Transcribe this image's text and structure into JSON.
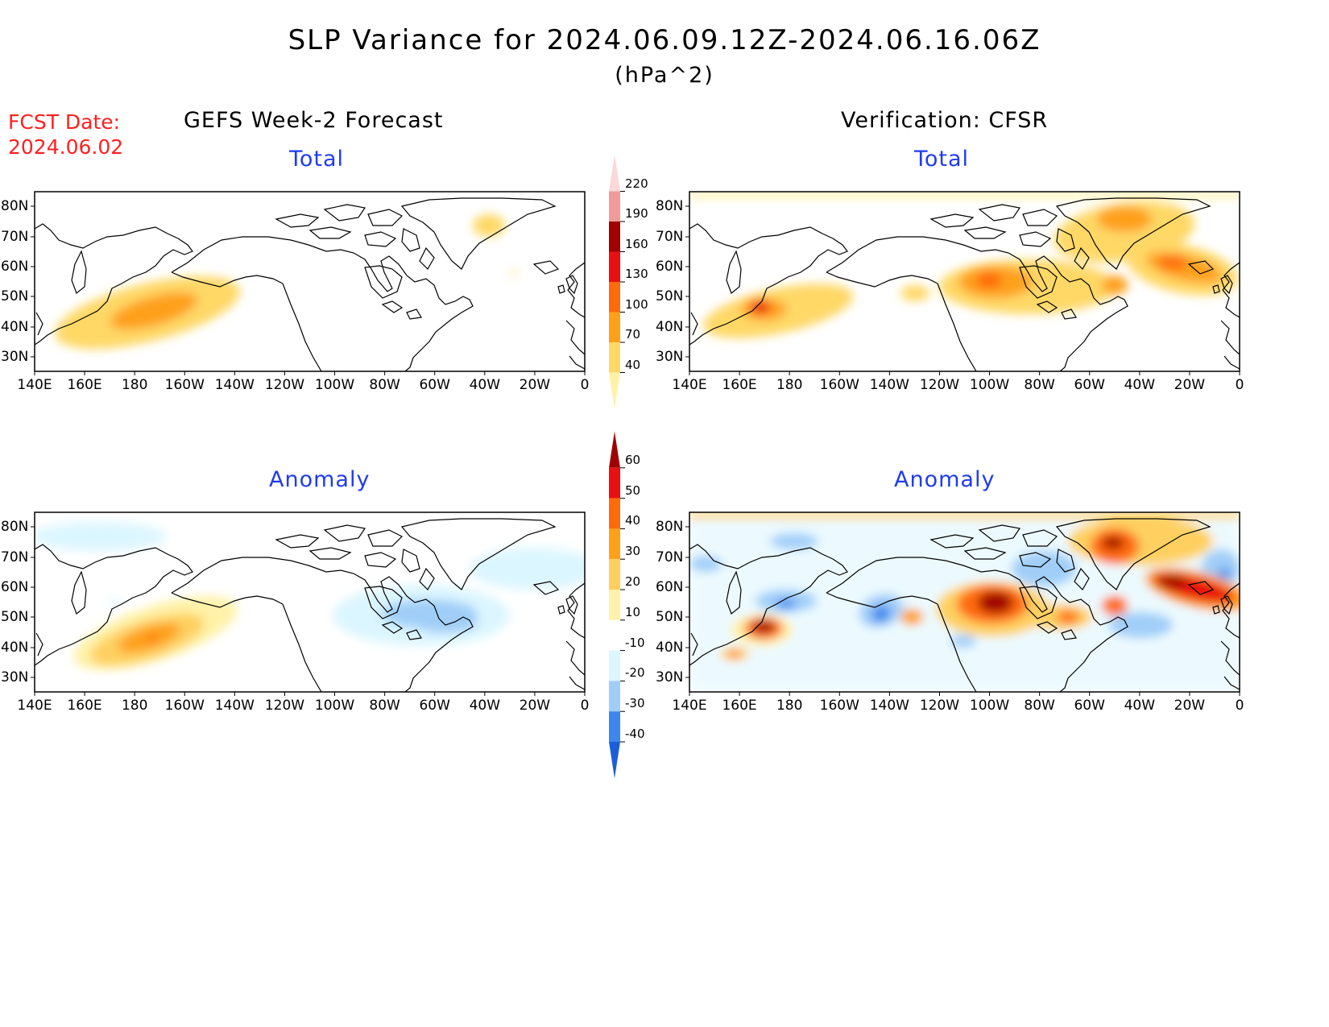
{
  "header": {
    "title": "SLP Variance for 2024.06.09.12Z-2024.06.16.06Z",
    "units": "(hPa^2)",
    "fcst_label": "FCST Date:",
    "fcst_date": "2024.06.02"
  },
  "columns": {
    "left": "GEFS Week-2 Forecast",
    "right": "Verification: CFSR"
  },
  "panel_titles": {
    "total": "Total",
    "anomaly": "Anomaly"
  },
  "axes": {
    "lat_labels": [
      "80N",
      "70N",
      "60N",
      "50N",
      "40N",
      "30N"
    ],
    "lon_labels": [
      "140E",
      "160E",
      "180",
      "160W",
      "140W",
      "120W",
      "100W",
      "80W",
      "60W",
      "40W",
      "20W",
      "0"
    ]
  },
  "legends": {
    "total": {
      "levels": [
        "40",
        "70",
        "100",
        "130",
        "160",
        "190",
        "220"
      ],
      "colors": [
        "#fff2a8",
        "#ffd866",
        "#ffa01a",
        "#ff6a0a",
        "#e81010",
        "#a00000",
        "#f09a9a",
        "#fcd8d8"
      ]
    },
    "anomaly": {
      "levels": [
        "-40",
        "-30",
        "-20",
        "-10",
        "10",
        "20",
        "30",
        "40",
        "50",
        "60"
      ],
      "colors": [
        "#1a5fd8",
        "#3c86ee",
        "#a0cef8",
        "#dcf6ff",
        "#ffffff",
        "#fff2a8",
        "#ffd060",
        "#ffa01a",
        "#ff6a0a",
        "#e81010",
        "#a00000"
      ]
    }
  }
}
